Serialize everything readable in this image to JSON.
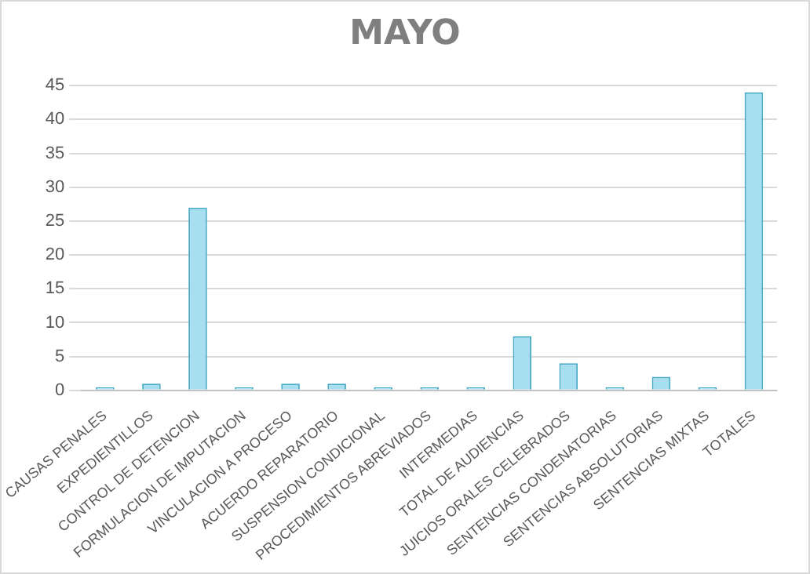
{
  "chart_data": {
    "type": "bar",
    "title": "MAYO",
    "categories": [
      "CAUSAS PENALES",
      "EXPEDIENTILLOS",
      "CONTROL DE DETENCION",
      "FORMULACION DE IMPUTACION",
      "VINCULACION A PROCESO",
      "ACUERDO REPARATORIO",
      "SUSPENSION CONDICIONAL",
      "PROCEDIMIENTOS ABREVIADOS",
      "INTERMEDIAS",
      "TOTAL DE AUDIENCIAS",
      "JUICIOS ORALES CELEBRADOS",
      "SENTENCIAS CONDENATORIAS",
      "SENTENCIAS ABSOLUTORIAS",
      "SENTENCIAS MIXTAS",
      "TOTALES"
    ],
    "values": [
      0,
      1,
      27,
      0,
      1,
      1,
      0,
      0,
      0,
      8,
      4,
      0,
      2,
      0,
      44
    ],
    "color": "#a8dff0",
    "ylim": [
      0,
      45
    ],
    "yticks": [
      0,
      5,
      10,
      15,
      20,
      25,
      30,
      35,
      40,
      45
    ],
    "grid": "y"
  }
}
